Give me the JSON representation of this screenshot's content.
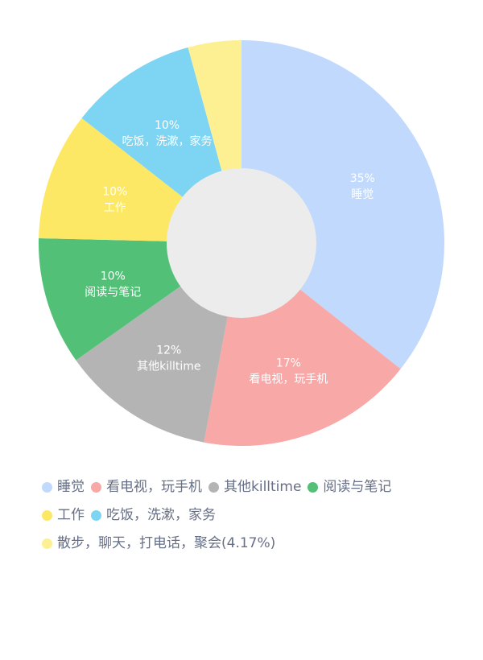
{
  "chart_data": {
    "type": "pie",
    "style": "donut",
    "series": [
      {
        "name": "睡觉",
        "value": 35,
        "label_percent": "35%",
        "label_text": "睡觉",
        "color": "#c1d9fc"
      },
      {
        "name": "看电视，玩手机",
        "value": 17,
        "label_percent": "17%",
        "label_text": "看电视，玩手机",
        "color": "#f7a8a7"
      },
      {
        "name": "其他killtime",
        "value": 12,
        "label_percent": "12%",
        "label_text": "其他killtime",
        "color": "#b4b4b4"
      },
      {
        "name": "阅读与笔记",
        "value": 10,
        "label_percent": "10%",
        "label_text": "阅读与笔记",
        "color": "#52c177"
      },
      {
        "name": "工作",
        "value": 10,
        "label_percent": "10%",
        "label_text": "工作",
        "color": "#fde866"
      },
      {
        "name": "吃饭，洗漱，家务",
        "value": 10,
        "label_percent": "10%",
        "label_text": "吃饭，洗漱，家务",
        "color": "#7dd5f3"
      },
      {
        "name": "散步，聊天，打电话，聚会(4.17%)",
        "value": 4.17,
        "label_percent": "",
        "label_text": "",
        "color": "#fdf093"
      }
    ],
    "center_color": "#ececec",
    "legend_position": "bottom",
    "legend_rows": [
      [
        0,
        1,
        2,
        3
      ],
      [
        4,
        5
      ],
      [
        6
      ]
    ]
  }
}
